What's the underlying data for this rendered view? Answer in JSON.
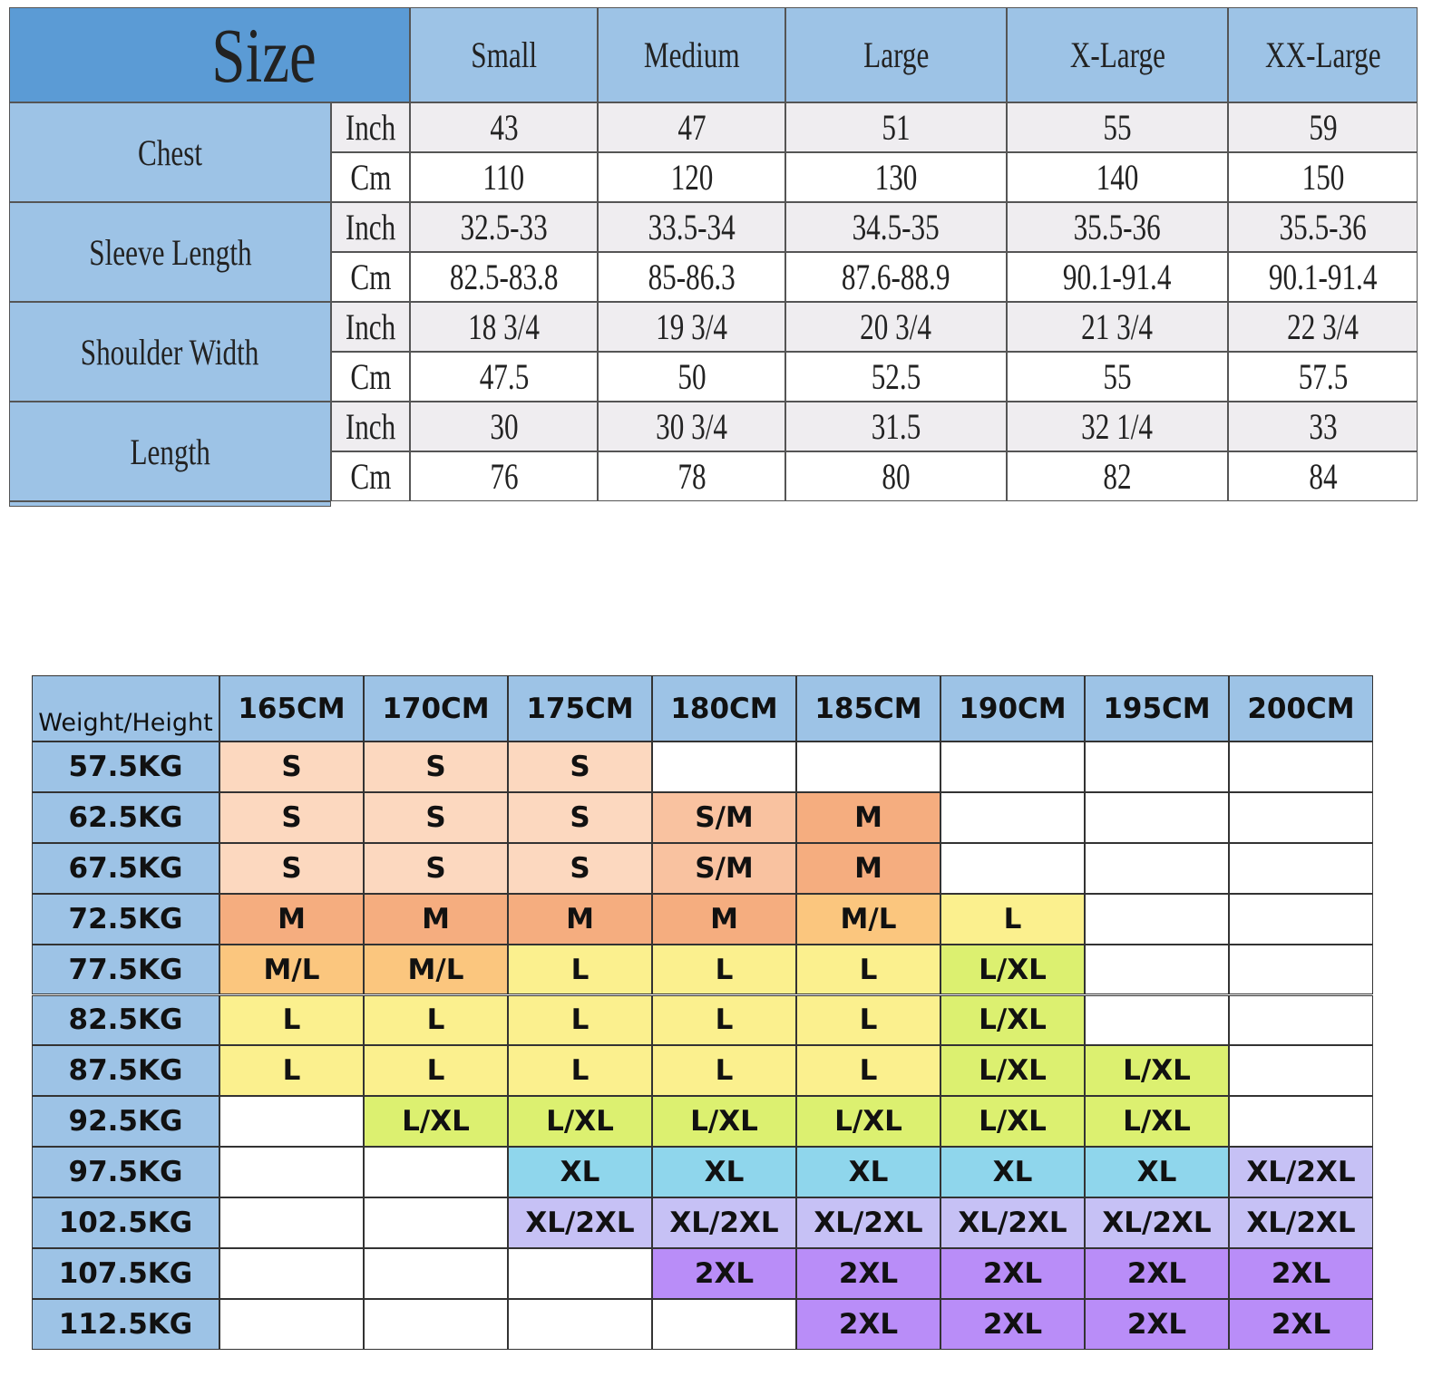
{
  "size_chart": {
    "title": "Size",
    "sizes": [
      "Small",
      "Medium",
      "Large",
      "X-Large",
      "XX-Large"
    ],
    "measurements": [
      {
        "name": "Chest",
        "rows": [
          {
            "unit": "Inch",
            "values": [
              "43",
              "47",
              "51",
              "55",
              "59"
            ]
          },
          {
            "unit": "Cm",
            "values": [
              "110",
              "120",
              "130",
              "140",
              "150"
            ]
          }
        ]
      },
      {
        "name": "Sleeve Length",
        "rows": [
          {
            "unit": "Inch",
            "values": [
              "32.5-33",
              "33.5-34",
              "34.5-35",
              "35.5-36",
              "35.5-36"
            ]
          },
          {
            "unit": "Cm",
            "values": [
              "82.5-83.8",
              "85-86.3",
              "87.6-88.9",
              "90.1-91.4",
              "90.1-91.4"
            ]
          }
        ]
      },
      {
        "name": "Shoulder Width",
        "rows": [
          {
            "unit": "Inch",
            "values": [
              "18 3/4",
              "19 3/4",
              "20 3/4",
              "21 3/4",
              "22 3/4"
            ]
          },
          {
            "unit": "Cm",
            "values": [
              "47.5",
              "50",
              "52.5",
              "55",
              "57.5"
            ]
          }
        ]
      },
      {
        "name": "Length",
        "rows": [
          {
            "unit": "Inch",
            "values": [
              "30",
              "30 3/4",
              "31.5",
              "32 1/4",
              "33"
            ]
          },
          {
            "unit": "Cm",
            "values": [
              "76",
              "78",
              "80",
              "82",
              "84"
            ]
          }
        ]
      }
    ]
  },
  "fit_chart": {
    "corner": "Weight/Height",
    "heights": [
      "165CM",
      "170CM",
      "175CM",
      "180CM",
      "185CM",
      "190CM",
      "195CM",
      "200CM"
    ],
    "rows": [
      {
        "weight": "57.5KG",
        "sizes": [
          "S",
          "S",
          "S",
          null,
          null,
          null,
          null,
          null
        ]
      },
      {
        "weight": "62.5KG",
        "sizes": [
          "S",
          "S",
          "S",
          "S/M",
          "M",
          null,
          null,
          null
        ]
      },
      {
        "weight": "67.5KG",
        "sizes": [
          "S",
          "S",
          "S",
          "S/M",
          "M",
          null,
          null,
          null
        ]
      },
      {
        "weight": "72.5KG",
        "sizes": [
          "M",
          "M",
          "M",
          "M",
          "M/L",
          "L",
          null,
          null
        ]
      },
      {
        "weight": "77.5KG",
        "sizes": [
          "M/L",
          "M/L",
          "L",
          "L",
          "L",
          "L/XL",
          null,
          null
        ]
      },
      {
        "weight": "82.5KG",
        "sizes": [
          "L",
          "L",
          "L",
          "L",
          "L",
          "L/XL",
          null,
          null
        ]
      },
      {
        "weight": "87.5KG",
        "sizes": [
          "L",
          "L",
          "L",
          "L",
          "L",
          "L/XL",
          "L/XL",
          null
        ]
      },
      {
        "weight": "92.5KG",
        "sizes": [
          null,
          "L/XL",
          "L/XL",
          "L/XL",
          "L/XL",
          "L/XL",
          "L/XL",
          null
        ]
      },
      {
        "weight": "97.5KG",
        "sizes": [
          null,
          null,
          "XL",
          "XL",
          "XL",
          "XL",
          "XL",
          "XL/2XL"
        ]
      },
      {
        "weight": "102.5KG",
        "sizes": [
          null,
          null,
          "XL/2XL",
          "XL/2XL",
          "XL/2XL",
          "XL/2XL",
          "XL/2XL",
          "XL/2XL"
        ]
      },
      {
        "weight": "107.5KG",
        "sizes": [
          null,
          null,
          null,
          "2XL",
          "2XL",
          "2XL",
          "2XL",
          "2XL"
        ]
      },
      {
        "weight": "112.5KG",
        "sizes": [
          null,
          null,
          null,
          null,
          "2XL",
          "2XL",
          "2XL",
          "2XL"
        ]
      }
    ],
    "colors": {
      "S": "#fcd8bf",
      "S/M": "#f9c2a0",
      "M": "#f5ad7f",
      "M/L": "#fbc67e",
      "L": "#fbf08e",
      "L/XL": "#dcf070",
      "XL": "#8fd6ec",
      "XL/2XL": "#c6c1f5",
      "2XL": "#b98df8"
    }
  }
}
